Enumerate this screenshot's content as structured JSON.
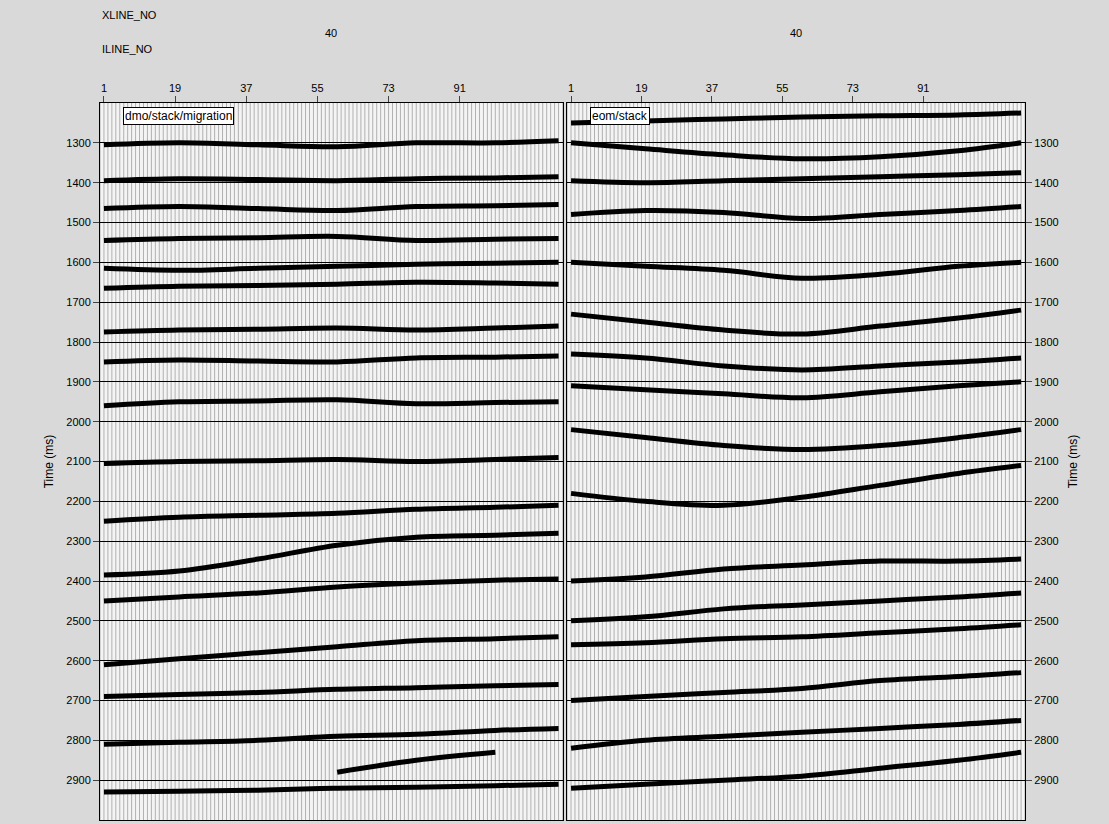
{
  "header": {
    "xline_label": "XLINE_NO",
    "iline_label": "ILINE_NO"
  },
  "chart_data": [
    {
      "type": "line",
      "title": "dmo/stack/migration",
      "xline_no": 40,
      "ylabel": "Time (ms)",
      "xlim": [
        0,
        117
      ],
      "xticks": [
        1,
        19,
        37,
        55,
        73,
        91
      ],
      "ylim": [
        1200,
        3000
      ],
      "yticks": [
        1300,
        1400,
        1500,
        1600,
        1700,
        1800,
        1900,
        2000,
        2100,
        2200,
        2300,
        2400,
        2500,
        2600,
        2700,
        2800,
        2900
      ],
      "grid": true,
      "x": [
        1,
        20,
        40,
        60,
        80,
        100,
        116
      ],
      "series": [
        {
          "color": "#000000",
          "values": [
            1305,
            1300,
            1305,
            1310,
            1300,
            1300,
            1295
          ]
        },
        {
          "color": "#000000",
          "values": [
            1395,
            1390,
            1392,
            1395,
            1390,
            1388,
            1385
          ]
        },
        {
          "color": "#000000",
          "values": [
            1465,
            1460,
            1465,
            1470,
            1460,
            1458,
            1455
          ]
        },
        {
          "color": "#000000",
          "values": [
            1545,
            1540,
            1538,
            1535,
            1545,
            1542,
            1540
          ]
        },
        {
          "color": "#000000",
          "values": [
            1615,
            1620,
            1615,
            1610,
            1605,
            1602,
            1600
          ]
        },
        {
          "color": "#000000",
          "values": [
            1665,
            1660,
            1658,
            1655,
            1650,
            1652,
            1655
          ]
        },
        {
          "color": "#000000",
          "values": [
            1775,
            1770,
            1768,
            1765,
            1770,
            1765,
            1760
          ]
        },
        {
          "color": "#000000",
          "values": [
            1850,
            1845,
            1848,
            1850,
            1840,
            1838,
            1835
          ]
        },
        {
          "color": "#000000",
          "values": [
            1960,
            1950,
            1948,
            1945,
            1955,
            1952,
            1950
          ]
        },
        {
          "color": "#000000",
          "values": [
            2105,
            2100,
            2098,
            2095,
            2100,
            2095,
            2090
          ]
        },
        {
          "color": "#000000",
          "values": [
            2250,
            2240,
            2235,
            2230,
            2220,
            2215,
            2210
          ]
        },
        {
          "color": "#000000",
          "values": [
            2385,
            2375,
            2345,
            2310,
            2290,
            2285,
            2280
          ]
        },
        {
          "color": "#000000",
          "values": [
            2450,
            2440,
            2430,
            2415,
            2405,
            2398,
            2395
          ]
        },
        {
          "color": "#000000",
          "values": [
            2610,
            2595,
            2580,
            2565,
            2550,
            2545,
            2540
          ]
        },
        {
          "color": "#000000",
          "values": [
            2690,
            2685,
            2680,
            2672,
            2668,
            2663,
            2660
          ]
        },
        {
          "color": "#000000",
          "values": [
            2810,
            2805,
            2800,
            2790,
            2785,
            2775,
            2770
          ]
        },
        {
          "color": "#000000",
          "values": [
            null,
            null,
            null,
            2880,
            2850,
            2830,
            null
          ]
        },
        {
          "color": "#000000",
          "values": [
            2930,
            2928,
            2925,
            2920,
            2918,
            2914,
            2910
          ]
        }
      ]
    },
    {
      "type": "line",
      "title": "eom/stack",
      "xline_no": 40,
      "ylabel": "Time (ms)",
      "xlim": [
        0,
        117
      ],
      "xticks": [
        1,
        19,
        37,
        55,
        73,
        91
      ],
      "ylim": [
        1200,
        3000
      ],
      "yticks": [
        1300,
        1400,
        1500,
        1600,
        1700,
        1800,
        1900,
        2000,
        2100,
        2200,
        2300,
        2400,
        2500,
        2600,
        2700,
        2800,
        2900
      ],
      "grid": true,
      "x": [
        1,
        20,
        40,
        60,
        80,
        100,
        116
      ],
      "series": [
        {
          "color": "#000000",
          "values": [
            1250,
            1245,
            1240,
            1235,
            1232,
            1230,
            1225
          ]
        },
        {
          "color": "#000000",
          "values": [
            1300,
            1315,
            1330,
            1340,
            1335,
            1320,
            1300
          ]
        },
        {
          "color": "#000000",
          "values": [
            1395,
            1400,
            1395,
            1390,
            1385,
            1380,
            1375
          ]
        },
        {
          "color": "#000000",
          "values": [
            1480,
            1470,
            1475,
            1490,
            1480,
            1470,
            1460
          ]
        },
        {
          "color": "#000000",
          "values": [
            1600,
            1610,
            1620,
            1640,
            1630,
            1610,
            1600
          ]
        },
        {
          "color": "#000000",
          "values": [
            1730,
            1750,
            1770,
            1780,
            1760,
            1740,
            1720
          ]
        },
        {
          "color": "#000000",
          "values": [
            1830,
            1840,
            1860,
            1870,
            1860,
            1850,
            1840
          ]
        },
        {
          "color": "#000000",
          "values": [
            1910,
            1920,
            1930,
            1940,
            1925,
            1910,
            1900
          ]
        },
        {
          "color": "#000000",
          "values": [
            2020,
            2040,
            2060,
            2070,
            2060,
            2040,
            2020
          ]
        },
        {
          "color": "#000000",
          "values": [
            2180,
            2200,
            2210,
            2190,
            2160,
            2130,
            2110
          ]
        },
        {
          "color": "#000000",
          "values": [
            2400,
            2390,
            2370,
            2360,
            2350,
            2350,
            2345
          ]
        },
        {
          "color": "#000000",
          "values": [
            2500,
            2490,
            2470,
            2460,
            2450,
            2440,
            2430
          ]
        },
        {
          "color": "#000000",
          "values": [
            2560,
            2555,
            2545,
            2540,
            2530,
            2520,
            2510
          ]
        },
        {
          "color": "#000000",
          "values": [
            2700,
            2690,
            2680,
            2670,
            2650,
            2640,
            2630
          ]
        },
        {
          "color": "#000000",
          "values": [
            2820,
            2800,
            2790,
            2780,
            2770,
            2760,
            2750
          ]
        },
        {
          "color": "#000000",
          "values": [
            2920,
            2910,
            2900,
            2890,
            2870,
            2850,
            2830
          ]
        }
      ]
    }
  ]
}
